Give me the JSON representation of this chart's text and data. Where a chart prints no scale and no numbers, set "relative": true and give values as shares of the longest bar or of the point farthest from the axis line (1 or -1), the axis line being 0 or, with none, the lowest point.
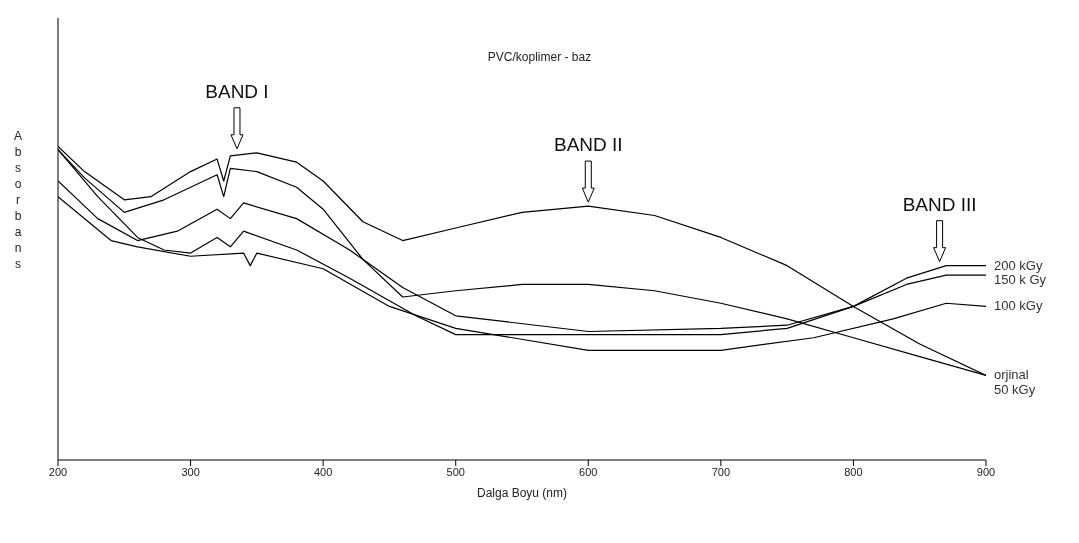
{
  "chart_data": {
    "type": "line",
    "title": "PVC/koplimer - baz",
    "xlabel": "Dalga Boyu (nm)",
    "ylabel": "Absorbans",
    "relative": true,
    "xlim": [
      200,
      900
    ],
    "xticks": [
      200,
      300,
      400,
      500,
      600,
      700,
      800,
      900
    ],
    "tick_labels": "x",
    "grid": false,
    "legend": false,
    "marker": "none",
    "line_style": "solid",
    "annotations": [
      {
        "text": "BAND I",
        "x": 335,
        "y": 0.98
      },
      {
        "text": "BAND II",
        "x": 600,
        "y": 0.81
      },
      {
        "text": "BAND III",
        "x": 865,
        "y": 0.62
      }
    ],
    "series": [
      {
        "name": "orjinal",
        "color": "#000000",
        "x": [
          200,
          220,
          250,
          270,
          300,
          320,
          325,
          330,
          350,
          380,
          400,
          430,
          460,
          500,
          550,
          600,
          650,
          700,
          750,
          800,
          850,
          900
        ],
        "values": [
          1.0,
          0.92,
          0.83,
          0.84,
          0.92,
          0.96,
          0.89,
          0.97,
          0.98,
          0.95,
          0.89,
          0.76,
          0.7,
          0.74,
          0.79,
          0.81,
          0.78,
          0.71,
          0.62,
          0.49,
          0.37,
          0.27
        ]
      },
      {
        "name": "50 kGy",
        "color": "#000000",
        "x": [
          200,
          220,
          250,
          280,
          300,
          320,
          325,
          330,
          350,
          380,
          400,
          430,
          460,
          500,
          550,
          600,
          650,
          700,
          750,
          800,
          850,
          900
        ],
        "values": [
          0.99,
          0.9,
          0.79,
          0.83,
          0.87,
          0.91,
          0.84,
          0.93,
          0.92,
          0.87,
          0.8,
          0.64,
          0.52,
          0.54,
          0.56,
          0.56,
          0.54,
          0.5,
          0.45,
          0.39,
          0.33,
          0.27
        ]
      },
      {
        "name": "100 kGy",
        "color": "#000000",
        "x": [
          200,
          240,
          260,
          300,
          340,
          345,
          350,
          400,
          450,
          500,
          600,
          700,
          770,
          830,
          870,
          900
        ],
        "values": [
          0.84,
          0.7,
          0.68,
          0.65,
          0.66,
          0.62,
          0.66,
          0.61,
          0.49,
          0.42,
          0.35,
          0.35,
          0.39,
          0.45,
          0.5,
          0.49
        ]
      },
      {
        "name": "150 k Gy",
        "color": "#000000",
        "x": [
          200,
          230,
          260,
          280,
          300,
          320,
          330,
          340,
          380,
          420,
          470,
          500,
          600,
          700,
          750,
          800,
          840,
          870,
          900
        ],
        "values": [
          0.99,
          0.84,
          0.71,
          0.67,
          0.66,
          0.71,
          0.68,
          0.73,
          0.67,
          0.58,
          0.46,
          0.4,
          0.4,
          0.4,
          0.42,
          0.49,
          0.56,
          0.59,
          0.59
        ]
      },
      {
        "name": "200 kGy",
        "color": "#000000",
        "x": [
          200,
          230,
          260,
          290,
          320,
          330,
          340,
          380,
          420,
          460,
          500,
          600,
          700,
          750,
          800,
          840,
          870,
          900
        ],
        "values": [
          0.89,
          0.77,
          0.7,
          0.73,
          0.8,
          0.77,
          0.82,
          0.77,
          0.67,
          0.55,
          0.46,
          0.41,
          0.42,
          0.43,
          0.49,
          0.58,
          0.62,
          0.62
        ]
      }
    ]
  }
}
